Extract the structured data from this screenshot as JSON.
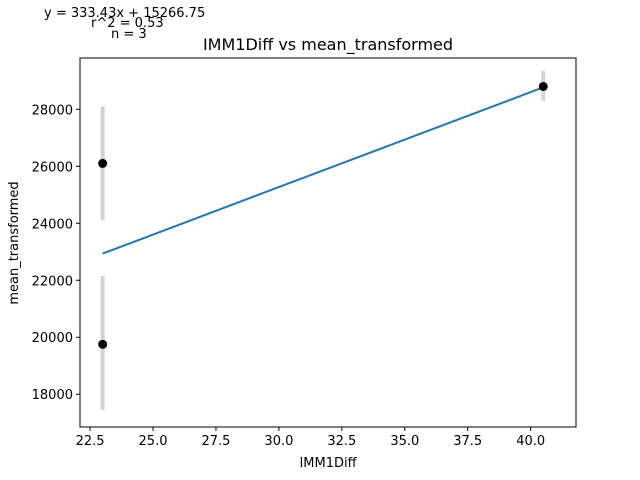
{
  "annotations": {
    "equation": "y = 333.43x + 15266.75",
    "r2": "r^2 = 0.53",
    "n": "n = 3"
  },
  "chart_data": {
    "type": "scatter",
    "title": "IMM1Diff vs mean_transformed",
    "xlabel": "IMM1Diff",
    "ylabel": "mean_transformed",
    "xlim": [
      22.1,
      41.8
    ],
    "ylim": [
      16850,
      29800
    ],
    "xticks": [
      22.5,
      25.0,
      27.5,
      30.0,
      32.5,
      35.0,
      37.5,
      40.0
    ],
    "xtick_labels": [
      "22.5",
      "25.0",
      "27.5",
      "30.0",
      "32.5",
      "35.0",
      "37.5",
      "40.0"
    ],
    "yticks": [
      18000,
      20000,
      22000,
      24000,
      26000,
      28000
    ],
    "ytick_labels": [
      "18000",
      "20000",
      "22000",
      "24000",
      "26000",
      "28000"
    ],
    "grid": false,
    "points": [
      {
        "x": 23.0,
        "y": 26100,
        "err_low": 24100,
        "err_high": 28100
      },
      {
        "x": 23.0,
        "y": 19750,
        "err_low": 17450,
        "err_high": 22150
      },
      {
        "x": 40.5,
        "y": 28800,
        "err_low": 28300,
        "err_high": 29350
      }
    ],
    "fit": {
      "slope": 333.43,
      "intercept": 15266.75,
      "x_range": [
        23.0,
        40.5
      ]
    },
    "colors": {
      "fit_line": "#1f77b4",
      "points": "#000000",
      "error_bars": "#d3d3d3"
    }
  }
}
